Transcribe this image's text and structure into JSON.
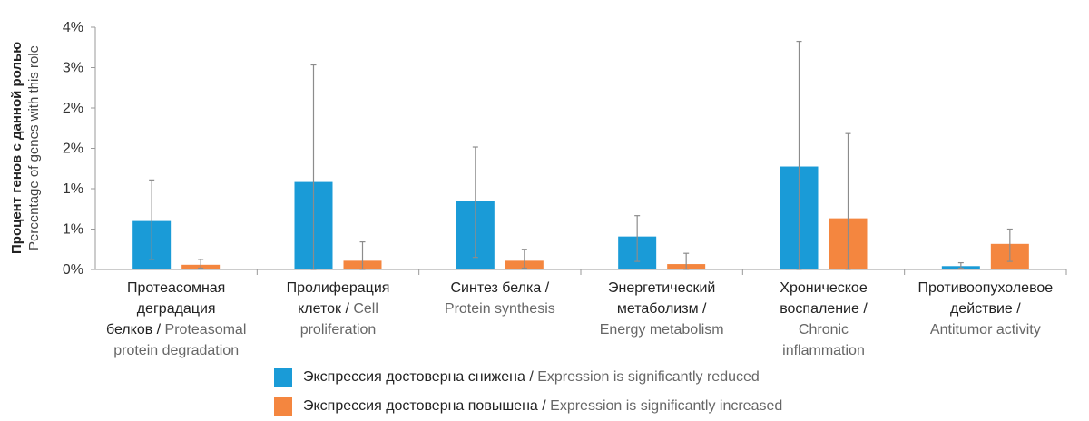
{
  "colors": {
    "reduced": "#1a9bd7",
    "increased": "#f4863f",
    "axis": "#9a9a9a",
    "error": "#8c8c8c"
  },
  "chart_data": {
    "type": "bar",
    "y_axis_title": {
      "ru": "Процент генов с данной ролью",
      "en": "Percentage of genes with this role"
    },
    "y_tick_labels": [
      "0%",
      "1%",
      "1%",
      "2%",
      "2%",
      "3%",
      "4%"
    ],
    "ylim": [
      0,
      3.6
    ],
    "grid": false,
    "categories": [
      {
        "ru": "Протеасомная деградация белков",
        "en": "Proteasomal protein degradation",
        "lines": [
          {
            "ru": "Протеасомная"
          },
          {
            "ru": "деградация"
          },
          {
            "ru": "белков",
            "en": "Proteasomal"
          },
          {
            "en": "protein degradation"
          }
        ]
      },
      {
        "ru": "Пролиферация клеток",
        "en": "Cell proliferation",
        "lines": [
          {
            "ru": "Пролиферация"
          },
          {
            "ru": "клеток",
            "en": "Cell"
          },
          {
            "en": "proliferation"
          }
        ]
      },
      {
        "ru": "Синтез белка",
        "en": "Protein synthesis",
        "lines": [
          {
            "ru": "Синтез белка",
            "en": ""
          },
          {
            "en": "Protein synthesis"
          }
        ]
      },
      {
        "ru": "Энергетический метаболизм",
        "en": "Energy metabolism",
        "lines": [
          {
            "ru": "Энергетический"
          },
          {
            "ru": "метаболизм",
            "en": ""
          },
          {
            "en": "Energy metabolism"
          }
        ]
      },
      {
        "ru": "Хроническое воспаление",
        "en": "Chronic inflammation",
        "lines": [
          {
            "ru": "Хроническое"
          },
          {
            "ru": "воспаление",
            "en": ""
          },
          {
            "en": "Chronic"
          },
          {
            "en": "inflammation"
          }
        ]
      },
      {
        "ru": "Противоопухолевое действие",
        "en": "Antitumor activity",
        "lines": [
          {
            "ru": "Противоопухолевое"
          },
          {
            "ru": "действие",
            "en": ""
          },
          {
            "en": "Antitumor activity"
          }
        ]
      }
    ],
    "series": [
      {
        "name_ru": "Экспрессия достоверна снижена",
        "name_en": "Expression is significantly reduced",
        "values": [
          0.72,
          1.3,
          1.02,
          0.49,
          1.53,
          0.05
        ],
        "error_bars": [
          [
            0.15,
            1.33
          ],
          [
            0.0,
            3.04
          ],
          [
            0.18,
            1.82
          ],
          [
            0.12,
            0.8
          ],
          [
            0.0,
            3.39
          ],
          [
            0.02,
            0.1
          ]
        ]
      },
      {
        "name_ru": "Экспрессия достоверна повышена",
        "name_en": "Expression is significantly increased",
        "values": [
          0.07,
          0.13,
          0.13,
          0.08,
          0.76,
          0.38
        ],
        "error_bars": [
          [
            0.02,
            0.15
          ],
          [
            0.0,
            0.41
          ],
          [
            0.02,
            0.3
          ],
          [
            0.0,
            0.24
          ],
          [
            0.0,
            2.02
          ],
          [
            0.12,
            0.6
          ]
        ]
      }
    ],
    "legend_position": "bottom-center"
  }
}
